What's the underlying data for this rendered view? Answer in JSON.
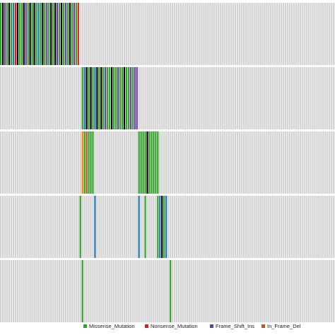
{
  "chart_data": {
    "type": "heatmap",
    "grid": false,
    "legend_placement": "bottom",
    "background_color": "#d3d3d3",
    "separator_color": "#ffffff",
    "n_rows": 5,
    "n_columns": 160,
    "legend": [
      {
        "label": "Missense_Mutation",
        "color": "#33a02c"
      },
      {
        "label": "Nonsense_Mutation",
        "color": "#e31a1c"
      },
      {
        "label": "Frame_Shift_Ins",
        "color": "#6a3d9a"
      },
      {
        "label": "In_Frame_Del",
        "color": "#b15928"
      }
    ],
    "other_colors": [
      "#000000",
      "#1f78b4",
      "#ff7f00"
    ],
    "rows": [
      {
        "cells": [
          [
            0,
            "#33a02c"
          ],
          [
            1,
            "#000000"
          ],
          [
            2,
            "#6a3d9a"
          ],
          [
            3,
            "#33a02c"
          ],
          [
            4,
            "#000000"
          ],
          [
            5,
            "#33a02c"
          ],
          [
            6,
            "#1f78b4"
          ],
          [
            7,
            "#e31a1c"
          ],
          [
            8,
            "#000000"
          ],
          [
            9,
            "#33a02c"
          ],
          [
            10,
            "#33a02c"
          ],
          [
            11,
            "#000000"
          ],
          [
            12,
            "#6a3d9a"
          ],
          [
            13,
            "#33a02c"
          ],
          [
            14,
            "#000000"
          ],
          [
            15,
            "#33a02c"
          ],
          [
            16,
            "#000000"
          ],
          [
            17,
            "#33a02c"
          ],
          [
            18,
            "#1f78b4"
          ],
          [
            19,
            "#33a02c"
          ],
          [
            20,
            "#000000"
          ],
          [
            21,
            "#33a02c"
          ],
          [
            22,
            "#6a3d9a"
          ],
          [
            23,
            "#33a02c"
          ],
          [
            24,
            "#000000"
          ],
          [
            25,
            "#33a02c"
          ],
          [
            26,
            "#000000"
          ],
          [
            27,
            "#6a3d9a"
          ],
          [
            28,
            "#33a02c"
          ],
          [
            29,
            "#000000"
          ],
          [
            30,
            "#33a02c"
          ],
          [
            31,
            "#6a3d9a"
          ],
          [
            32,
            "#33a02c"
          ],
          [
            33,
            "#000000"
          ],
          [
            34,
            "#33a02c"
          ],
          [
            35,
            "#6a3d9a"
          ],
          [
            36,
            "#33a02c"
          ],
          [
            37,
            "#e31a1c"
          ]
        ]
      },
      {
        "cells": [
          [
            39,
            "#33a02c"
          ],
          [
            40,
            "#1f78b4"
          ],
          [
            41,
            "#000000"
          ],
          [
            42,
            "#33a02c"
          ],
          [
            43,
            "#000000"
          ],
          [
            44,
            "#33a02c"
          ],
          [
            45,
            "#1f78b4"
          ],
          [
            46,
            "#000000"
          ],
          [
            47,
            "#33a02c"
          ],
          [
            48,
            "#000000"
          ],
          [
            49,
            "#33a02c"
          ],
          [
            50,
            "#6a3d9a"
          ],
          [
            51,
            "#33a02c"
          ],
          [
            52,
            "#33a02c"
          ],
          [
            53,
            "#000000"
          ],
          [
            54,
            "#33a02c"
          ],
          [
            55,
            "#33a02c"
          ],
          [
            56,
            "#6a3d9a"
          ],
          [
            57,
            "#33a02c"
          ],
          [
            58,
            "#33a02c"
          ],
          [
            59,
            "#000000"
          ],
          [
            60,
            "#33a02c"
          ],
          [
            61,
            "#33a02c"
          ],
          [
            62,
            "#6a3d9a"
          ],
          [
            63,
            "#33a02c"
          ],
          [
            64,
            "#6a3d9a"
          ],
          [
            65,
            "#6a3d9a"
          ]
        ]
      },
      {
        "cells": [
          [
            39,
            "#ff7f00"
          ],
          [
            40,
            "#33a02c"
          ],
          [
            41,
            "#b15928"
          ],
          [
            42,
            "#33a02c"
          ],
          [
            43,
            "#33a02c"
          ],
          [
            44,
            "#33a02c"
          ],
          [
            66,
            "#33a02c"
          ],
          [
            67,
            "#33a02c"
          ],
          [
            68,
            "#33a02c"
          ],
          [
            69,
            "#33a02c"
          ],
          [
            70,
            "#000000"
          ],
          [
            71,
            "#33a02c"
          ],
          [
            72,
            "#33a02c"
          ],
          [
            73,
            "#33a02c"
          ],
          [
            74,
            "#33a02c"
          ],
          [
            75,
            "#33a02c"
          ]
        ]
      },
      {
        "cells": [
          [
            38,
            "#33a02c"
          ],
          [
            45,
            "#1f78b4"
          ],
          [
            66,
            "#1f78b4"
          ],
          [
            69,
            "#33a02c"
          ],
          [
            75,
            "#33a02c"
          ],
          [
            76,
            "#1f78b4"
          ],
          [
            77,
            "#000000"
          ],
          [
            78,
            "#33a02c"
          ],
          [
            79,
            "#1f78b4"
          ]
        ]
      },
      {
        "cells": [
          [
            39,
            "#33a02c"
          ],
          [
            81,
            "#33a02c"
          ]
        ]
      }
    ]
  }
}
